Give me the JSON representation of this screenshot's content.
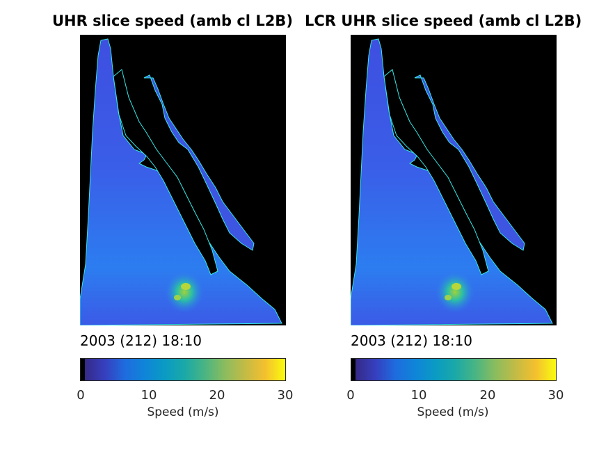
{
  "chart_data": [
    {
      "type": "heatmap",
      "title": "UHR slice speed (amb cl L2B)",
      "subtitle": "2003 (212) 18:10",
      "colorbar": {
        "label": "Speed (m/s)",
        "range": [
          0,
          30
        ],
        "ticks": [
          0,
          10,
          20,
          30
        ],
        "tick_labels": [
          "0",
          "10",
          "20",
          "30"
        ],
        "colormap": "parula",
        "orientation": "horizontal"
      },
      "field_summary": {
        "dominant_speed_range": [
          4,
          9
        ],
        "max_observed_speed": 18,
        "land_color": "#000000",
        "coast_color": "#00ffff"
      }
    },
    {
      "type": "heatmap",
      "title": "LCR UHR slice speed (amb cl L2B)",
      "subtitle": "2003 (212) 18:10",
      "colorbar": {
        "label": "Speed (m/s)",
        "range": [
          0,
          30
        ],
        "ticks": [
          0,
          10,
          20,
          30
        ],
        "tick_labels": [
          "0",
          "10",
          "20",
          "30"
        ],
        "colormap": "parula",
        "orientation": "horizontal"
      },
      "field_summary": {
        "dominant_speed_range": [
          4,
          9
        ],
        "max_observed_speed": 18,
        "land_color": "#000000",
        "coast_color": "#00ffff"
      }
    }
  ]
}
